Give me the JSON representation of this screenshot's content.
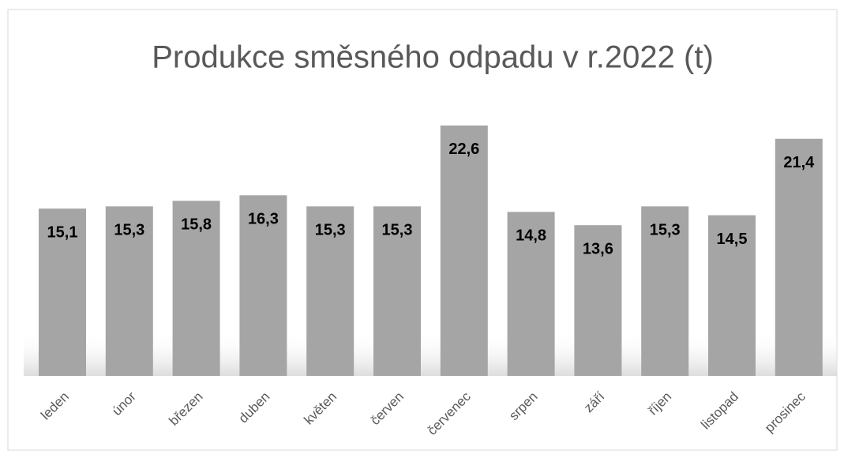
{
  "chart_data": {
    "type": "bar",
    "title": "Produkce směsného odpadu v r.2022 (t)",
    "categories": [
      "leden",
      "únor",
      "březen",
      "duben",
      "květen",
      "červen",
      "červenec",
      "srpen",
      "září",
      "říjen",
      "listopad",
      "prosinec"
    ],
    "values": [
      15.1,
      15.3,
      15.8,
      16.3,
      15.3,
      15.3,
      22.6,
      14.8,
      13.6,
      15.3,
      14.5,
      21.4
    ],
    "value_labels": [
      "15,1",
      "15,3",
      "15,8",
      "16,3",
      "15,3",
      "15,3",
      "22,6",
      "14,8",
      "13,6",
      "15,3",
      "14,5",
      "21,4"
    ],
    "color": "#a5a5a5"
  }
}
